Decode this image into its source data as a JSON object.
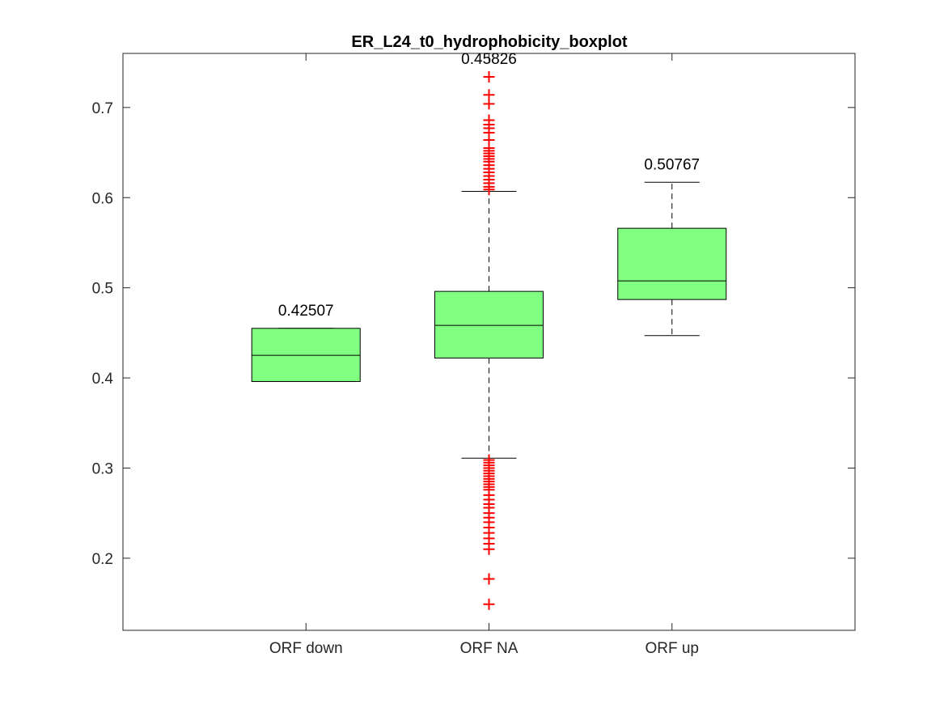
{
  "chart_data": {
    "type": "box",
    "title": "ER_L24_t0_hydrophobicity_boxplot",
    "xlabel": "",
    "ylabel": "",
    "ylim": [
      0.12,
      0.76
    ],
    "yticks": [
      0.2,
      0.3,
      0.4,
      0.5,
      0.6,
      0.7
    ],
    "ytick_labels": [
      "0.2",
      "0.3",
      "0.4",
      "0.5",
      "0.6",
      "0.7"
    ],
    "categories": [
      "ORF down",
      "ORF NA",
      "ORF up"
    ],
    "grid": false,
    "box_fill": "#80ff80",
    "outlier_color": "#ff0000",
    "boxes": [
      {
        "category": "ORF down",
        "whisker_low": 0.396,
        "q1": 0.396,
        "median": 0.42507,
        "q3": 0.455,
        "whisker_high": 0.455,
        "median_label": "0.42507",
        "outliers": []
      },
      {
        "category": "ORF NA",
        "whisker_low": 0.311,
        "q1": 0.422,
        "median": 0.45826,
        "q3": 0.496,
        "whisker_high": 0.607,
        "median_label": "0.45826",
        "outliers": [
          0.734,
          0.714,
          0.704,
          0.686,
          0.681,
          0.677,
          0.672,
          0.664,
          0.655,
          0.652,
          0.649,
          0.646,
          0.643,
          0.64,
          0.636,
          0.632,
          0.628,
          0.624,
          0.62,
          0.616,
          0.612,
          0.609,
          0.309,
          0.306,
          0.303,
          0.3,
          0.297,
          0.294,
          0.291,
          0.288,
          0.285,
          0.282,
          0.279,
          0.276,
          0.27,
          0.265,
          0.26,
          0.256,
          0.25,
          0.245,
          0.24,
          0.234,
          0.228,
          0.222,
          0.216,
          0.21,
          0.177,
          0.149
        ]
      },
      {
        "category": "ORF up",
        "whisker_low": 0.447,
        "q1": 0.487,
        "median": 0.50767,
        "q3": 0.566,
        "whisker_high": 0.617,
        "median_label": "0.50767",
        "outliers": []
      }
    ]
  }
}
